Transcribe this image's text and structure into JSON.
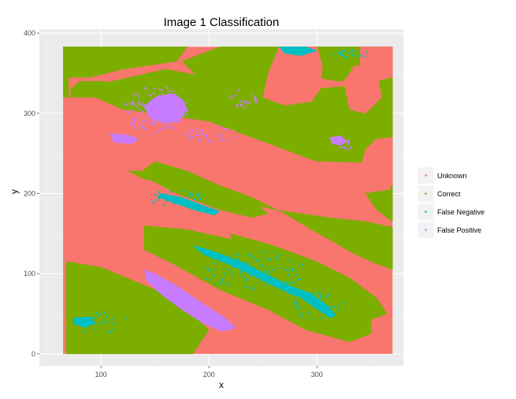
{
  "chart_data": {
    "type": "heatmap",
    "title": "Image 1 Classification",
    "xlabel": "x",
    "ylabel": "y",
    "xlim": [
      43,
      380
    ],
    "ylim": [
      -15,
      405
    ],
    "x_ticks": [
      100,
      200,
      300
    ],
    "y_ticks": [
      0,
      100,
      200,
      300,
      400
    ],
    "grid": true,
    "legend_position": "right",
    "legend": [
      {
        "label": "Unknown",
        "color": "#F8766D"
      },
      {
        "label": "Correct",
        "color": "#7CAE00"
      },
      {
        "label": "False Negative",
        "color": "#00BFC4"
      },
      {
        "label": "False Positive",
        "color": "#C77CFF"
      }
    ],
    "extent": {
      "x": [
        65,
        370
      ],
      "y": [
        0,
        383
      ]
    },
    "regions": [
      {
        "class": "Correct",
        "points": [
          [
            65,
            383
          ],
          [
            180,
            383
          ],
          [
            170,
            365
          ],
          [
            120,
            355
          ],
          [
            90,
            345
          ],
          [
            70,
            345
          ],
          [
            70,
            320
          ],
          [
            65,
            320
          ]
        ]
      },
      {
        "class": "Correct",
        "points": [
          [
            210,
            383
          ],
          [
            265,
            383
          ],
          [
            290,
            360
          ],
          [
            300,
            330
          ],
          [
            305,
            305
          ],
          [
            285,
            290
          ],
          [
            250,
            300
          ],
          [
            220,
            310
          ],
          [
            200,
            325
          ],
          [
            190,
            345
          ],
          [
            175,
            365
          ]
        ]
      },
      {
        "class": "Correct",
        "points": [
          [
            265,
            383
          ],
          [
            370,
            383
          ],
          [
            370,
            350
          ],
          [
            345,
            345
          ],
          [
            320,
            340
          ],
          [
            300,
            345
          ],
          [
            280,
            365
          ]
        ]
      },
      {
        "class": "Correct",
        "points": [
          [
            370,
            345
          ],
          [
            370,
            165
          ],
          [
            355,
            180
          ],
          [
            340,
            210
          ],
          [
            320,
            230
          ],
          [
            290,
            245
          ],
          [
            260,
            260
          ],
          [
            230,
            275
          ],
          [
            200,
            290
          ],
          [
            150,
            300
          ],
          [
            120,
            305
          ],
          [
            95,
            320
          ],
          [
            110,
            340
          ],
          [
            160,
            355
          ],
          [
            220,
            340
          ],
          [
            290,
            330
          ],
          [
            340,
            335
          ]
        ]
      },
      {
        "class": "Correct",
        "points": [
          [
            72,
            320
          ],
          [
            112,
            320
          ],
          [
            122,
            335
          ],
          [
            105,
            340
          ],
          [
            80,
            340
          ],
          [
            72,
            330
          ]
        ]
      },
      {
        "class": "Correct",
        "points": [
          [
            125,
            228
          ],
          [
            150,
            228
          ],
          [
            200,
            215
          ],
          [
            240,
            195
          ],
          [
            270,
            175
          ],
          [
            295,
            155
          ],
          [
            315,
            140
          ],
          [
            330,
            128
          ],
          [
            350,
            115
          ],
          [
            370,
            105
          ],
          [
            370,
            158
          ],
          [
            345,
            165
          ],
          [
            310,
            170
          ],
          [
            260,
            180
          ],
          [
            215,
            195
          ],
          [
            175,
            210
          ],
          [
            140,
            218
          ]
        ]
      },
      {
        "class": "Correct",
        "points": [
          [
            140,
            160
          ],
          [
            180,
            155
          ],
          [
            230,
            140
          ],
          [
            280,
            120
          ],
          [
            320,
            95
          ],
          [
            350,
            60
          ],
          [
            350,
            25
          ],
          [
            330,
            15
          ],
          [
            290,
            30
          ],
          [
            255,
            55
          ],
          [
            210,
            80
          ],
          [
            170,
            110
          ],
          [
            140,
            130
          ]
        ]
      },
      {
        "class": "Correct",
        "points": [
          [
            150,
            240
          ],
          [
            180,
            228
          ],
          [
            210,
            210
          ],
          [
            240,
            190
          ],
          [
            255,
            175
          ],
          [
            240,
            170
          ],
          [
            210,
            180
          ],
          [
            170,
            200
          ],
          [
            135,
            225
          ]
        ]
      },
      {
        "class": "Correct",
        "points": [
          [
            68,
            115
          ],
          [
            100,
            108
          ],
          [
            150,
            80
          ],
          [
            180,
            55
          ],
          [
            200,
            30
          ],
          [
            185,
            0
          ],
          [
            68,
            0
          ]
        ]
      },
      {
        "class": "Correct",
        "points": [
          [
            220,
            150
          ],
          [
            260,
            135
          ],
          [
            300,
            115
          ],
          [
            330,
            95
          ],
          [
            355,
            70
          ],
          [
            365,
            50
          ],
          [
            345,
            40
          ],
          [
            320,
            60
          ],
          [
            290,
            80
          ],
          [
            255,
            100
          ],
          [
            225,
            120
          ]
        ]
      },
      {
        "class": "Unknown",
        "points": [
          [
            265,
            383
          ],
          [
            300,
            383
          ],
          [
            305,
            360
          ],
          [
            303,
            330
          ],
          [
            295,
            315
          ],
          [
            270,
            310
          ],
          [
            250,
            320
          ],
          [
            255,
            350
          ]
        ]
      },
      {
        "class": "Unknown",
        "points": [
          [
            340,
            383
          ],
          [
            370,
            383
          ],
          [
            370,
            345
          ],
          [
            350,
            340
          ],
          [
            340,
            360
          ]
        ]
      },
      {
        "class": "Unknown",
        "points": [
          [
            335,
            360
          ],
          [
            355,
            355
          ],
          [
            360,
            320
          ],
          [
            345,
            300
          ],
          [
            330,
            305
          ],
          [
            325,
            340
          ]
        ]
      },
      {
        "class": "Unknown",
        "points": [
          [
            355,
            268
          ],
          [
            370,
            270
          ],
          [
            370,
            210
          ],
          [
            355,
            215
          ],
          [
            340,
            230
          ],
          [
            345,
            255
          ]
        ]
      },
      {
        "class": "Unknown",
        "points": [
          [
            300,
            240
          ],
          [
            345,
            238
          ],
          [
            368,
            230
          ],
          [
            368,
            205
          ],
          [
            340,
            200
          ],
          [
            310,
            205
          ],
          [
            295,
            220
          ]
        ]
      },
      {
        "class": "False Positive",
        "points": [
          [
            140,
            105
          ],
          [
            150,
            100
          ],
          [
            170,
            85
          ],
          [
            195,
            62
          ],
          [
            215,
            45
          ],
          [
            225,
            32
          ],
          [
            212,
            28
          ],
          [
            195,
            38
          ],
          [
            175,
            55
          ],
          [
            155,
            75
          ],
          [
            142,
            92
          ]
        ]
      },
      {
        "class": "False Positive",
        "points": [
          [
            150,
            320
          ],
          [
            165,
            325
          ],
          [
            175,
            318
          ],
          [
            180,
            305
          ],
          [
            172,
            290
          ],
          [
            158,
            288
          ],
          [
            145,
            295
          ],
          [
            140,
            308
          ]
        ]
      },
      {
        "class": "False Positive",
        "points": [
          [
            108,
            275
          ],
          [
            125,
            273
          ],
          [
            135,
            268
          ],
          [
            128,
            262
          ],
          [
            112,
            264
          ]
        ]
      },
      {
        "class": "False Positive",
        "points": [
          [
            312,
            270
          ],
          [
            322,
            272
          ],
          [
            328,
            265
          ],
          [
            322,
            260
          ],
          [
            314,
            262
          ]
        ]
      },
      {
        "class": "False Negative",
        "points": [
          [
            155,
            200
          ],
          [
            175,
            195
          ],
          [
            195,
            185
          ],
          [
            210,
            178
          ],
          [
            205,
            173
          ],
          [
            185,
            180
          ],
          [
            165,
            190
          ],
          [
            152,
            196
          ]
        ]
      },
      {
        "class": "False Negative",
        "points": [
          [
            185,
            135
          ],
          [
            200,
            130
          ],
          [
            230,
            115
          ],
          [
            260,
            95
          ],
          [
            285,
            78
          ],
          [
            280,
            72
          ],
          [
            255,
            88
          ],
          [
            225,
            108
          ],
          [
            195,
            124
          ]
        ]
      },
      {
        "class": "False Negative",
        "points": [
          [
            275,
            85
          ],
          [
            295,
            75
          ],
          [
            310,
            60
          ],
          [
            318,
            48
          ],
          [
            312,
            45
          ],
          [
            300,
            56
          ],
          [
            285,
            70
          ],
          [
            272,
            80
          ]
        ]
      },
      {
        "class": "False Negative",
        "points": [
          [
            265,
            383
          ],
          [
            290,
            383
          ],
          [
            300,
            378
          ],
          [
            285,
            372
          ],
          [
            270,
            375
          ]
        ]
      },
      {
        "class": "False Negative",
        "points": [
          [
            75,
            45
          ],
          [
            90,
            46
          ],
          [
            95,
            38
          ],
          [
            85,
            33
          ],
          [
            74,
            38
          ]
        ]
      }
    ]
  }
}
